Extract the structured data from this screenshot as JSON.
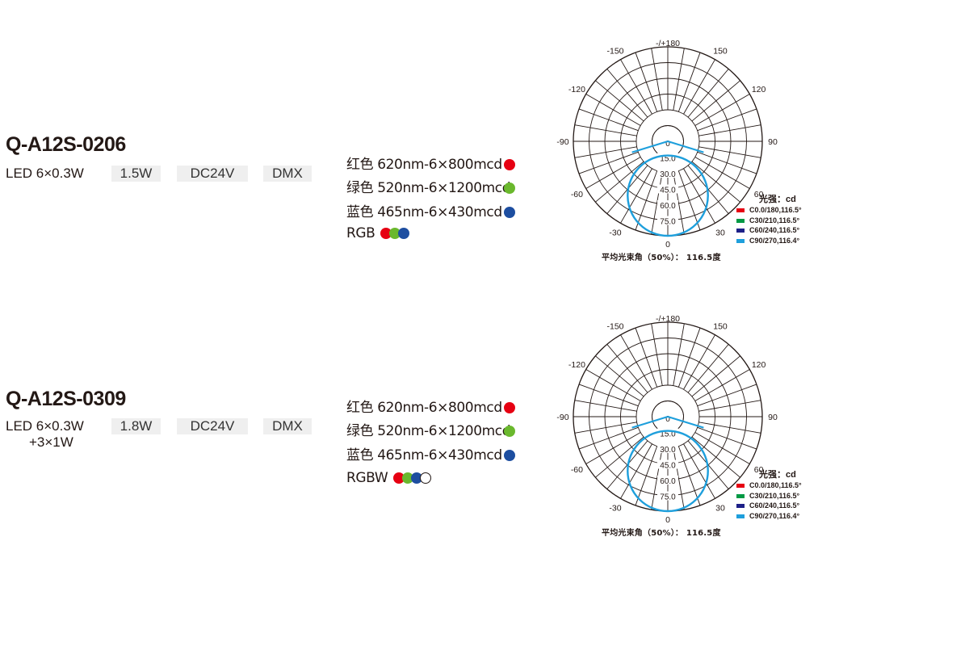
{
  "products": [
    {
      "model": "Q-A12S-0206",
      "led": [
        "LED 6×0.3W"
      ],
      "power": "1.5W",
      "voltage": "DC24V",
      "control": "DMX",
      "colors": [
        {
          "text": "红色 620nm-6×800mcd",
          "dot": "#e60012"
        },
        {
          "text": "绿色 520nm-6×1200mcd",
          "dot": "#6ab82d"
        },
        {
          "text": "蓝色 465nm-6×430mcd",
          "dot": "#1d4ea0"
        }
      ],
      "mix_label": "RGB",
      "mix_dots": [
        "#e60012",
        "#6ab82d",
        "#1d4ea0"
      ],
      "chart_data": {
        "type": "polar",
        "title": "",
        "angle_labels": [
          "-/+180",
          "150",
          "120",
          "90",
          "60",
          "30",
          "0",
          "-30",
          "-60",
          "-90",
          "-120",
          "-150"
        ],
        "radial_labels": [
          "0",
          "15.0",
          "30.0",
          "45.0",
          "60.0",
          "75.0"
        ],
        "unit_label": "光强：cd",
        "series": [
          {
            "name": "C0.0/180,116.5°",
            "color": "#e60012",
            "beam_angle": 116.5
          },
          {
            "name": "C30/210,116.5°",
            "color": "#009944",
            "beam_angle": 116.5
          },
          {
            "name": "C60/240,116.5°",
            "color": "#1d2088",
            "beam_angle": 116.5
          },
          {
            "name": "C90/270,116.4°",
            "color": "#1e9fdc",
            "beam_angle": 116.4
          }
        ],
        "beam_note": "平均光束角（50%）： 116.5度"
      }
    },
    {
      "model": "Q-A12S-0309",
      "led": [
        "LED 6×0.3W",
        "+3×1W"
      ],
      "power": "1.8W",
      "voltage": "DC24V",
      "control": "DMX",
      "colors": [
        {
          "text": "红色 620nm-6×800mcd",
          "dot": "#e60012"
        },
        {
          "text": "绿色 520nm-6×1200mcd",
          "dot": "#6ab82d"
        },
        {
          "text": "蓝色 465nm-6×430mcd",
          "dot": "#1d4ea0"
        }
      ],
      "mix_label": "RGBW",
      "mix_dots": [
        "#e60012",
        "#6ab82d",
        "#1d4ea0",
        "#ffffff"
      ],
      "chart_data": {
        "type": "polar",
        "title": "",
        "angle_labels": [
          "-/+180",
          "150",
          "120",
          "90",
          "60",
          "30",
          "0",
          "-30",
          "-60",
          "-90",
          "-120",
          "-150"
        ],
        "radial_labels": [
          "0",
          "15.0",
          "30.0",
          "45.0",
          "60.0",
          "75.0"
        ],
        "unit_label": "光强：cd",
        "series": [
          {
            "name": "C0.0/180,116.5°",
            "color": "#e60012",
            "beam_angle": 116.5
          },
          {
            "name": "C30/210,116.5°",
            "color": "#009944",
            "beam_angle": 116.5
          },
          {
            "name": "C60/240,116.5°",
            "color": "#1d2088",
            "beam_angle": 116.5
          },
          {
            "name": "C90/270,116.4°",
            "color": "#1e9fdc",
            "beam_angle": 116.4
          }
        ],
        "beam_note": "平均光束角（50%）： 116.5度"
      }
    }
  ]
}
